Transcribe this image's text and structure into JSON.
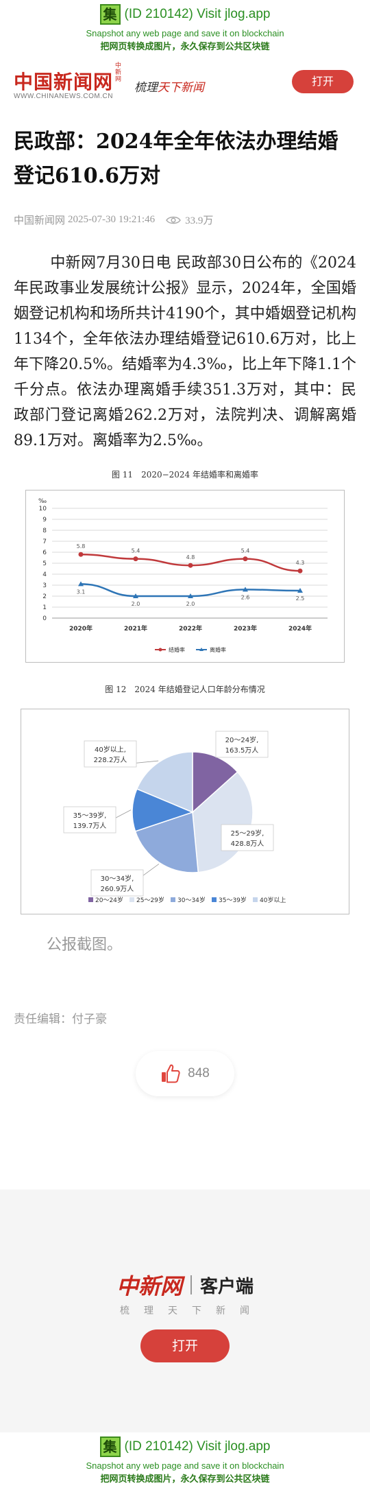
{
  "banner": {
    "badge": "集",
    "id_text": "(ID 210142) Visit jlog.app",
    "line2": "Snapshot any web page and save it on blockchain",
    "line3": "把网页转换成图片，永久保存到公共区块链"
  },
  "header": {
    "logo": "中国新闻网",
    "logo_vertical": "中新网",
    "logo_url": "WWW.CHINANEWS.COM.CN",
    "slogan_a": "梳理",
    "slogan_b": "天下新闻",
    "open_button": "打开"
  },
  "article": {
    "title": "民政部：2024年全年依法办理结婚登记610.6万对",
    "source": "中国新闻网",
    "datetime": "2025-07-30 19:21:46",
    "views": "33.9万",
    "body": "中新网7月30日电 民政部30日公布的《2024年民政事业发展统计公报》显示，2024年，全国婚姻登记机构和场所共计4190个，其中婚姻登记机构1134个，全年依法办理结婚登记610.6万对，比上年下降20.5%。结婚率为4.3‰，比上年下降1.1个千分点。依法办理离婚手续351.3万对，其中：民政部门登记离婚262.2万对，法院判决、调解离婚89.1万对。离婚率为2.5‰。",
    "caption": "公报截图。",
    "editor": "责任编辑：付子豪",
    "likes": "848"
  },
  "figure1": {
    "label": "图 11",
    "title": "2020−2024 年结婚率和离婚率"
  },
  "figure2": {
    "label": "图 12",
    "title": "2024 年结婚登记人口年龄分布情况"
  },
  "chart_data": [
    {
      "type": "line",
      "title": "2020−2024 年结婚率和离婚率",
      "ylabel": "‰",
      "categories": [
        "2020年",
        "2021年",
        "2022年",
        "2023年",
        "2024年"
      ],
      "ylim": [
        0,
        10
      ],
      "yticks": [
        0,
        1,
        2,
        3,
        4,
        5,
        6,
        7,
        8,
        9,
        10
      ],
      "grid": true,
      "legend": "bottom",
      "series": [
        {
          "name": "结婚率",
          "values": [
            5.8,
            5.4,
            4.8,
            5.4,
            4.3
          ],
          "labels": [
            "5.8",
            "5.4",
            "4.8",
            "5.4",
            "4.3"
          ],
          "color": "#c0393b",
          "marker": "circle"
        },
        {
          "name": "离婚率",
          "values": [
            3.1,
            2.0,
            2.0,
            2.6,
            2.5
          ],
          "labels": [
            "3.1",
            "2.0",
            "2.0",
            "2.6",
            "2.5"
          ],
          "color": "#2e75b6",
          "marker": "triangle"
        }
      ]
    },
    {
      "type": "pie",
      "title": "2024 年结婚登记人口年龄分布情况",
      "unit": "万人",
      "legend": "bottom",
      "slices": [
        {
          "name": "20～24岁",
          "value": 163.5,
          "color": "#8064a2",
          "label_a": "20～24岁,",
          "label_b": "163.5万人"
        },
        {
          "name": "25～29岁",
          "value": 428.8,
          "color": "#dbe3f0",
          "label_a": "25～29岁,",
          "label_b": "428.8万人"
        },
        {
          "name": "30～34岁",
          "value": 260.9,
          "color": "#8eaadb",
          "label_a": "30～34岁,",
          "label_b": "260.9万人"
        },
        {
          "name": "35～39岁",
          "value": 139.7,
          "color": "#4a86d6",
          "label_a": "35～39岁,",
          "label_b": "139.7万人"
        },
        {
          "name": "40岁以上",
          "value": 228.2,
          "color": "#c5d5ec",
          "label_a": "40岁以上,",
          "label_b": "228.2万人"
        }
      ]
    }
  ],
  "footer": {
    "logo": "中新网",
    "client": "客户端",
    "tagline": "梳理天下新闻",
    "open_button": "打开"
  },
  "colors": {
    "brand_red": "#c8281e",
    "button_red": "#d6413b",
    "banner_green": "#2a8f22"
  }
}
